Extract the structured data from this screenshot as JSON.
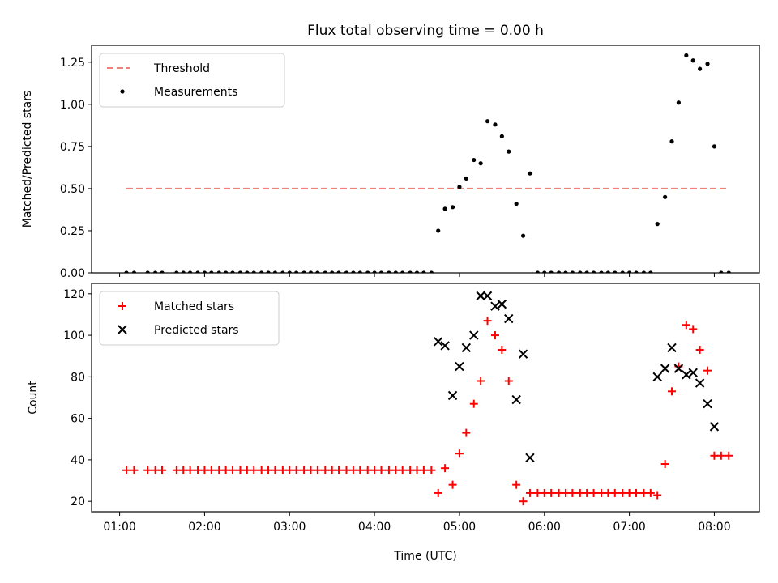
{
  "figure_title": "Flux total observing time = 0.00 h",
  "xlabel": "Time (UTC)",
  "colors": {
    "threshold": "#f08080",
    "matched": "#ff0000",
    "predicted": "#000000",
    "measurements": "#000000"
  },
  "chart_data": [
    {
      "type": "scatter",
      "ylabel": "Matched/Predicted stars",
      "xlim": [
        0.67,
        8.53
      ],
      "ylim": [
        0,
        1.35
      ],
      "xticks": [
        1,
        2,
        3,
        4,
        5,
        6,
        7,
        8
      ],
      "xtick_labels": [
        "01:00",
        "02:00",
        "03:00",
        "04:00",
        "05:00",
        "06:00",
        "07:00",
        "08:00"
      ],
      "show_xtick_labels": false,
      "yticks": [
        0,
        0.25,
        0.5,
        0.75,
        1.0,
        1.25
      ],
      "ytick_labels": [
        "0.00",
        "0.25",
        "0.50",
        "0.75",
        "1.00",
        "1.25"
      ],
      "legend_position": "top-left",
      "threshold": {
        "name": "Threshold",
        "value": 0.5,
        "x_range": [
          1.08,
          8.17
        ]
      },
      "series": [
        {
          "name": "Measurements",
          "marker": "dot",
          "x": [
            1.08,
            1.17,
            1.33,
            1.42,
            1.5,
            1.67,
            1.75,
            1.83,
            1.92,
            2.0,
            2.08,
            2.17,
            2.25,
            2.33,
            2.42,
            2.5,
            2.58,
            2.67,
            2.75,
            2.83,
            2.92,
            3.0,
            3.08,
            3.17,
            3.25,
            3.33,
            3.42,
            3.5,
            3.58,
            3.67,
            3.75,
            3.83,
            3.92,
            4.0,
            4.08,
            4.17,
            4.25,
            4.33,
            4.42,
            4.5,
            4.58,
            4.67,
            4.75,
            4.83,
            4.92,
            5.0,
            5.08,
            5.17,
            5.25,
            5.33,
            5.42,
            5.5,
            5.58,
            5.67,
            5.75,
            5.83,
            5.92,
            6.0,
            6.08,
            6.17,
            6.25,
            6.33,
            6.42,
            6.5,
            6.58,
            6.67,
            6.75,
            6.83,
            6.92,
            7.0,
            7.08,
            7.17,
            7.25,
            7.33,
            7.42,
            7.5,
            7.58,
            7.67,
            7.75,
            7.83,
            7.92,
            8.0,
            8.08,
            8.17
          ],
          "y": [
            0,
            0,
            0,
            0,
            0,
            0,
            0,
            0,
            0,
            0,
            0,
            0,
            0,
            0,
            0,
            0,
            0,
            0,
            0,
            0,
            0,
            0,
            0,
            0,
            0,
            0,
            0,
            0,
            0,
            0,
            0,
            0,
            0,
            0,
            0,
            0,
            0,
            0,
            0,
            0,
            0,
            0,
            0.25,
            0.38,
            0.39,
            0.51,
            0.56,
            0.67,
            0.65,
            0.9,
            0.88,
            0.81,
            0.72,
            0.41,
            0.22,
            0.59,
            0,
            0,
            0,
            0,
            0,
            0,
            0,
            0,
            0,
            0,
            0,
            0,
            0,
            0,
            0,
            0,
            0,
            0.29,
            0.45,
            0.78,
            1.01,
            1.29,
            1.26,
            1.21,
            1.24,
            0.75,
            0,
            0
          ]
        }
      ]
    },
    {
      "type": "scatter",
      "ylabel": "Count",
      "xlim": [
        0.67,
        8.53
      ],
      "ylim": [
        15,
        125
      ],
      "xticks": [
        1,
        2,
        3,
        4,
        5,
        6,
        7,
        8
      ],
      "xtick_labels": [
        "01:00",
        "02:00",
        "03:00",
        "04:00",
        "05:00",
        "06:00",
        "07:00",
        "08:00"
      ],
      "show_xtick_labels": true,
      "yticks": [
        20,
        40,
        60,
        80,
        100,
        120
      ],
      "ytick_labels": [
        "20",
        "40",
        "60",
        "80",
        "100",
        "120"
      ],
      "legend_position": "top-left",
      "series": [
        {
          "name": "Matched stars",
          "marker": "plus",
          "x": [
            1.08,
            1.17,
            1.33,
            1.42,
            1.5,
            1.67,
            1.75,
            1.83,
            1.92,
            2.0,
            2.08,
            2.17,
            2.25,
            2.33,
            2.42,
            2.5,
            2.58,
            2.67,
            2.75,
            2.83,
            2.92,
            3.0,
            3.08,
            3.17,
            3.25,
            3.33,
            3.42,
            3.5,
            3.58,
            3.67,
            3.75,
            3.83,
            3.92,
            4.0,
            4.08,
            4.17,
            4.25,
            4.33,
            4.42,
            4.5,
            4.58,
            4.67,
            4.75,
            4.83,
            4.92,
            5.0,
            5.08,
            5.17,
            5.25,
            5.33,
            5.42,
            5.5,
            5.58,
            5.67,
            5.75,
            5.83,
            5.92,
            6.0,
            6.08,
            6.17,
            6.25,
            6.33,
            6.42,
            6.5,
            6.58,
            6.67,
            6.75,
            6.83,
            6.92,
            7.0,
            7.08,
            7.17,
            7.25,
            7.33,
            7.42,
            7.5,
            7.58,
            7.67,
            7.75,
            7.83,
            7.92,
            8.0,
            8.08,
            8.17
          ],
          "y": [
            35,
            35,
            35,
            35,
            35,
            35,
            35,
            35,
            35,
            35,
            35,
            35,
            35,
            35,
            35,
            35,
            35,
            35,
            35,
            35,
            35,
            35,
            35,
            35,
            35,
            35,
            35,
            35,
            35,
            35,
            35,
            35,
            35,
            35,
            35,
            35,
            35,
            35,
            35,
            35,
            35,
            35,
            24,
            36,
            28,
            43,
            53,
            67,
            78,
            107,
            100,
            93,
            78,
            28,
            20,
            24,
            24,
            24,
            24,
            24,
            24,
            24,
            24,
            24,
            24,
            24,
            24,
            24,
            24,
            24,
            24,
            24,
            24,
            23,
            38,
            73,
            85,
            105,
            103,
            93,
            83,
            42,
            42,
            42
          ]
        },
        {
          "name": "Predicted stars",
          "marker": "x",
          "x": [
            4.75,
            4.83,
            4.92,
            5.0,
            5.08,
            5.17,
            5.25,
            5.33,
            5.42,
            5.5,
            5.58,
            5.67,
            5.75,
            5.83,
            7.33,
            7.42,
            7.5,
            7.58,
            7.67,
            7.75,
            7.83,
            7.92,
            8.0
          ],
          "y": [
            97,
            95,
            71,
            85,
            94,
            100,
            119,
            119,
            114,
            115,
            108,
            69,
            91,
            41,
            80,
            84,
            94,
            84,
            81,
            82,
            77,
            67,
            56
          ]
        }
      ]
    }
  ]
}
